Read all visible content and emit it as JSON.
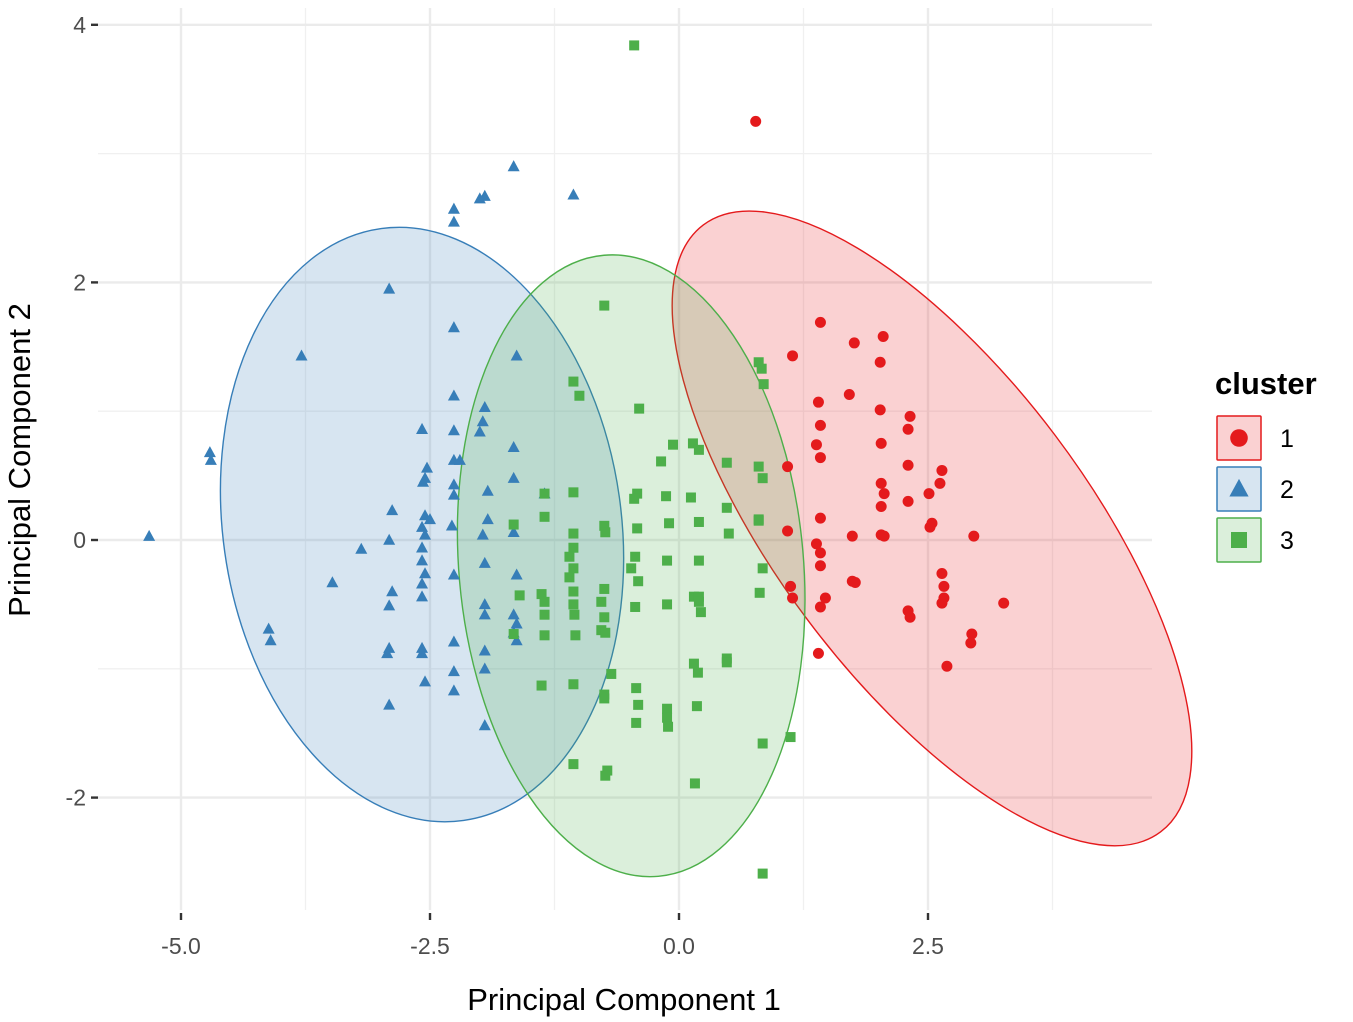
{
  "chart_data": {
    "type": "scatter",
    "title": "",
    "xlabel": "Principal Component 1",
    "ylabel": "Principal Component 2",
    "xlim": [
      -5.5,
      4.75
    ],
    "ylim": [
      -2.85,
      4.1
    ],
    "x_ticks": [
      -5.0,
      -2.5,
      0.0,
      2.5
    ],
    "x_tick_labels": [
      "-5.0",
      "-2.5",
      "0.0",
      "2.5"
    ],
    "y_ticks": [
      -2,
      0,
      2,
      4
    ],
    "y_tick_labels": [
      "-2",
      "0",
      "2",
      "4"
    ],
    "grid": true,
    "legend": {
      "title": "cluster",
      "position": "right",
      "entries": [
        "1",
        "2",
        "3"
      ]
    },
    "series": [
      {
        "name": "1",
        "color": "#E41A1C",
        "marker": "circle",
        "ellipse": {
          "cx": 2.54,
          "cy": 0.09,
          "rx": 1.55,
          "ry": 2.95,
          "angle_deg": -37
        },
        "points": [
          [
            0.77,
            3.25
          ],
          [
            1.42,
            1.69
          ],
          [
            1.76,
            1.53
          ],
          [
            2.05,
            1.58
          ],
          [
            1.14,
            1.43
          ],
          [
            2.02,
            1.38
          ],
          [
            1.4,
            1.07
          ],
          [
            1.71,
            1.13
          ],
          [
            2.02,
            1.01
          ],
          [
            2.32,
            0.96
          ],
          [
            2.3,
            0.86
          ],
          [
            1.42,
            0.89
          ],
          [
            2.03,
            0.75
          ],
          [
            1.38,
            0.74
          ],
          [
            1.42,
            0.64
          ],
          [
            2.3,
            0.58
          ],
          [
            2.64,
            0.54
          ],
          [
            2.62,
            0.44
          ],
          [
            1.09,
            0.57
          ],
          [
            2.03,
            0.44
          ],
          [
            2.06,
            0.36
          ],
          [
            2.51,
            0.36
          ],
          [
            2.03,
            0.26
          ],
          [
            2.3,
            0.3
          ],
          [
            2.54,
            0.13
          ],
          [
            2.52,
            0.1
          ],
          [
            1.42,
            0.17
          ],
          [
            1.09,
            0.07
          ],
          [
            1.74,
            0.03
          ],
          [
            2.03,
            0.04
          ],
          [
            2.06,
            0.03
          ],
          [
            2.96,
            0.03
          ],
          [
            1.38,
            -0.03
          ],
          [
            1.42,
            -0.1
          ],
          [
            1.42,
            -0.2
          ],
          [
            1.74,
            -0.32
          ],
          [
            1.77,
            -0.33
          ],
          [
            2.64,
            -0.26
          ],
          [
            2.66,
            -0.36
          ],
          [
            2.66,
            -0.45
          ],
          [
            1.12,
            -0.36
          ],
          [
            1.14,
            -0.45
          ],
          [
            1.47,
            -0.45
          ],
          [
            1.42,
            -0.52
          ],
          [
            2.3,
            -0.55
          ],
          [
            2.32,
            -0.6
          ],
          [
            2.64,
            -0.49
          ],
          [
            3.26,
            -0.49
          ],
          [
            2.94,
            -0.73
          ],
          [
            2.93,
            -0.8
          ],
          [
            1.4,
            -0.88
          ],
          [
            2.69,
            -0.98
          ]
        ]
      },
      {
        "name": "2",
        "color": "#377EB8",
        "marker": "triangle",
        "ellipse": {
          "cx": -2.58,
          "cy": 0.12,
          "rx": 2.0,
          "ry": 2.32,
          "angle_deg": -8
        },
        "points": [
          [
            -1.66,
            2.9
          ],
          [
            -1.06,
            2.68
          ],
          [
            -1.95,
            2.67
          ],
          [
            -2.0,
            2.65
          ],
          [
            -2.26,
            2.57
          ],
          [
            -2.26,
            2.47
          ],
          [
            -2.91,
            1.95
          ],
          [
            -3.79,
            1.43
          ],
          [
            -2.26,
            1.65
          ],
          [
            -1.63,
            1.43
          ],
          [
            -2.26,
            1.12
          ],
          [
            -1.95,
            1.03
          ],
          [
            -1.97,
            0.92
          ],
          [
            -2.58,
            0.86
          ],
          [
            -2.26,
            0.85
          ],
          [
            -2.0,
            0.84
          ],
          [
            -1.66,
            0.72
          ],
          [
            -4.71,
            0.68
          ],
          [
            -4.7,
            0.62
          ],
          [
            -2.26,
            0.62
          ],
          [
            -2.2,
            0.62
          ],
          [
            -2.53,
            0.56
          ],
          [
            -2.55,
            0.48
          ],
          [
            -1.66,
            0.48
          ],
          [
            -2.57,
            0.45
          ],
          [
            -2.26,
            0.43
          ],
          [
            -2.26,
            0.35
          ],
          [
            -1.92,
            0.38
          ],
          [
            -2.88,
            0.23
          ],
          [
            -2.55,
            0.19
          ],
          [
            -2.5,
            0.16
          ],
          [
            -2.58,
            0.1
          ],
          [
            -2.55,
            0.04
          ],
          [
            -2.28,
            0.11
          ],
          [
            -1.92,
            0.16
          ],
          [
            -1.35,
            0.36
          ],
          [
            -1.97,
            0.04
          ],
          [
            -1.66,
            0.06
          ],
          [
            -5.32,
            0.03
          ],
          [
            -3.19,
            -0.07
          ],
          [
            -2.91,
            0.0
          ],
          [
            -2.58,
            -0.06
          ],
          [
            -2.58,
            -0.16
          ],
          [
            -2.55,
            -0.26
          ],
          [
            -2.58,
            -0.34
          ],
          [
            -2.58,
            -0.44
          ],
          [
            -2.26,
            -0.27
          ],
          [
            -1.95,
            -0.18
          ],
          [
            -1.63,
            -0.27
          ],
          [
            -3.48,
            -0.33
          ],
          [
            -2.88,
            -0.4
          ],
          [
            -2.91,
            -0.51
          ],
          [
            -1.95,
            -0.5
          ],
          [
            -1.95,
            -0.58
          ],
          [
            -1.66,
            -0.58
          ],
          [
            -1.63,
            -0.65
          ],
          [
            -1.66,
            -0.72
          ],
          [
            -1.63,
            -0.78
          ],
          [
            -4.12,
            -0.69
          ],
          [
            -4.1,
            -0.78
          ],
          [
            -2.91,
            -0.84
          ],
          [
            -2.93,
            -0.88
          ],
          [
            -2.58,
            -0.84
          ],
          [
            -2.58,
            -0.88
          ],
          [
            -2.26,
            -0.79
          ],
          [
            -1.95,
            -0.86
          ],
          [
            -2.26,
            -1.02
          ],
          [
            -2.55,
            -1.1
          ],
          [
            -2.26,
            -1.17
          ],
          [
            -1.95,
            -1.0
          ],
          [
            -2.91,
            -1.28
          ],
          [
            -1.95,
            -1.44
          ]
        ]
      },
      {
        "name": "3",
        "color": "#4DAF4A",
        "marker": "square",
        "ellipse": {
          "cx": -0.48,
          "cy": -0.2,
          "rx": 1.73,
          "ry": 2.42,
          "angle_deg": -5
        },
        "points": [
          [
            -0.45,
            3.84
          ],
          [
            -0.75,
            1.82
          ],
          [
            0.8,
            1.38
          ],
          [
            0.83,
            1.33
          ],
          [
            0.85,
            1.21
          ],
          [
            -1.06,
            1.23
          ],
          [
            -1.0,
            1.12
          ],
          [
            -0.4,
            1.02
          ],
          [
            -0.06,
            0.74
          ],
          [
            0.14,
            0.75
          ],
          [
            0.2,
            0.7
          ],
          [
            -0.18,
            0.61
          ],
          [
            0.48,
            0.6
          ],
          [
            0.8,
            0.57
          ],
          [
            0.84,
            0.48
          ],
          [
            -1.35,
            0.36
          ],
          [
            -1.06,
            0.37
          ],
          [
            -0.42,
            0.36
          ],
          [
            -0.45,
            0.32
          ],
          [
            -0.13,
            0.34
          ],
          [
            0.12,
            0.33
          ],
          [
            0.48,
            0.25
          ],
          [
            0.8,
            0.16
          ],
          [
            -1.35,
            0.18
          ],
          [
            -1.66,
            0.12
          ],
          [
            -0.75,
            0.11
          ],
          [
            -0.74,
            0.06
          ],
          [
            -1.06,
            0.05
          ],
          [
            -0.42,
            0.09
          ],
          [
            -0.1,
            0.13
          ],
          [
            0.2,
            0.14
          ],
          [
            0.5,
            0.05
          ],
          [
            0.8,
            0.15
          ],
          [
            -1.06,
            -0.06
          ],
          [
            -1.1,
            -0.13
          ],
          [
            -1.06,
            -0.22
          ],
          [
            -0.44,
            -0.13
          ],
          [
            -0.48,
            -0.22
          ],
          [
            -0.12,
            -0.16
          ],
          [
            0.2,
            -0.16
          ],
          [
            0.84,
            -0.22
          ],
          [
            -1.6,
            -0.43
          ],
          [
            -1.38,
            -0.42
          ],
          [
            -1.35,
            -0.48
          ],
          [
            -1.06,
            -0.4
          ],
          [
            -1.1,
            -0.29
          ],
          [
            -0.75,
            -0.38
          ],
          [
            -0.78,
            -0.48
          ],
          [
            -0.41,
            -0.32
          ],
          [
            -0.44,
            -0.52
          ],
          [
            0.15,
            -0.44
          ],
          [
            0.2,
            -0.44
          ],
          [
            0.22,
            -0.56
          ],
          [
            0.81,
            -0.41
          ],
          [
            -1.35,
            -0.58
          ],
          [
            -1.06,
            -0.5
          ],
          [
            -1.05,
            -0.58
          ],
          [
            -0.75,
            -0.6
          ],
          [
            -0.78,
            -0.7
          ],
          [
            -0.12,
            -0.5
          ],
          [
            0.2,
            -0.48
          ],
          [
            -1.66,
            -0.73
          ],
          [
            -1.35,
            -0.74
          ],
          [
            -1.04,
            -0.74
          ],
          [
            -0.74,
            -0.72
          ],
          [
            0.15,
            -0.96
          ],
          [
            0.19,
            -1.03
          ],
          [
            0.48,
            -0.92
          ],
          [
            0.48,
            -0.95
          ],
          [
            -1.06,
            -1.12
          ],
          [
            -0.68,
            -1.04
          ],
          [
            -1.38,
            -1.13
          ],
          [
            -0.43,
            -1.15
          ],
          [
            -0.75,
            -1.2
          ],
          [
            -0.41,
            -1.28
          ],
          [
            -0.12,
            -1.31
          ],
          [
            -0.12,
            -1.38
          ],
          [
            -0.11,
            -1.45
          ],
          [
            -0.43,
            -1.42
          ],
          [
            -0.75,
            -1.23
          ],
          [
            0.18,
            -1.29
          ],
          [
            0.84,
            -1.58
          ],
          [
            1.12,
            -1.53
          ],
          [
            -1.06,
            -1.74
          ],
          [
            -0.72,
            -1.79
          ],
          [
            -0.74,
            -1.83
          ],
          [
            0.16,
            -1.89
          ],
          [
            0.84,
            -2.59
          ]
        ]
      }
    ]
  }
}
